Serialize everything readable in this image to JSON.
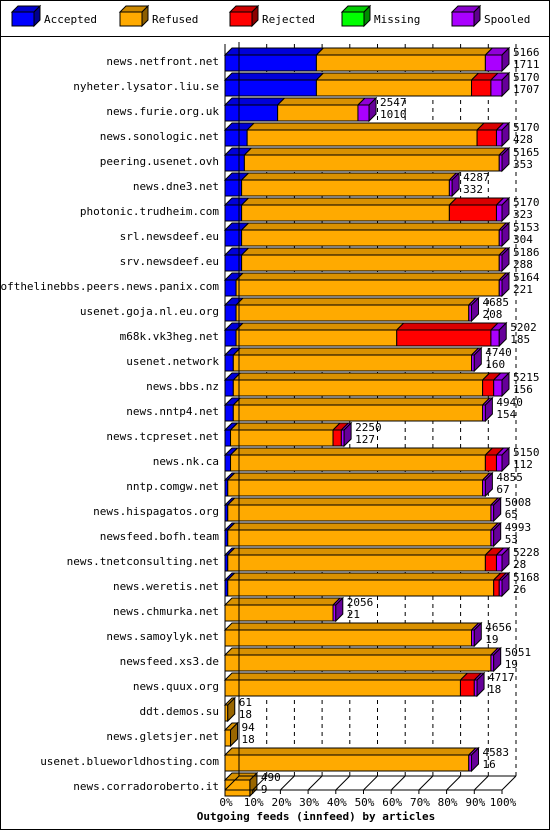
{
  "chart_data": {
    "type": "bar",
    "orientation": "horizontal",
    "stacked": true,
    "percent_scale": true,
    "title": "Outgoing feeds (innfeed) by articles",
    "legend": {
      "placement": "top",
      "entries": [
        {
          "label": "Accepted",
          "color": "#0000ff"
        },
        {
          "label": "Refused",
          "color": "#ffaa00"
        },
        {
          "label": "Rejected",
          "color": "#ff0000"
        },
        {
          "label": "Missing",
          "color": "#00ff00"
        },
        {
          "label": "Spooled",
          "color": "#aa00ff"
        }
      ]
    },
    "x_ticks": [
      "0%",
      "10%",
      "20%",
      "30%",
      "40%",
      "50%",
      "60%",
      "70%",
      "80%",
      "90%",
      "100%"
    ],
    "xlim": [
      0,
      100
    ],
    "grid": true,
    "rows": [
      {
        "label": "news.netfront.net",
        "total": "5166",
        "accepted_count": "1711",
        "pct": [
          33,
          61,
          0,
          0,
          6
        ]
      },
      {
        "label": "nyheter.lysator.liu.se",
        "total": "5170",
        "accepted_count": "1707",
        "pct": [
          33,
          56,
          7,
          0,
          4
        ]
      },
      {
        "label": "news.furie.org.uk",
        "total": "2547",
        "accepted_count": "1010",
        "pct": [
          19,
          29,
          0,
          0,
          4
        ]
      },
      {
        "label": "news.sonologic.net",
        "total": "5170",
        "accepted_count": "428",
        "pct": [
          8,
          83,
          7,
          0,
          2
        ]
      },
      {
        "label": "peering.usenet.ovh",
        "total": "5165",
        "accepted_count": "353",
        "pct": [
          7,
          92,
          0,
          0,
          1
        ]
      },
      {
        "label": "news.dne3.net",
        "total": "4287",
        "accepted_count": "332",
        "pct": [
          6,
          75,
          0,
          0,
          1
        ]
      },
      {
        "label": "photonic.trudheim.com",
        "total": "5170",
        "accepted_count": "323",
        "pct": [
          6,
          75,
          17,
          0,
          2
        ]
      },
      {
        "label": "srl.newsdeef.eu",
        "total": "5153",
        "accepted_count": "304",
        "pct": [
          6,
          93,
          0,
          0,
          1
        ]
      },
      {
        "label": "srv.newsdeef.eu",
        "total": "5186",
        "accepted_count": "288",
        "pct": [
          6,
          93,
          0,
          0,
          1
        ]
      },
      {
        "label": "endofthelinebbs.peers.news.panix.com",
        "total": "5164",
        "accepted_count": "221",
        "pct": [
          4,
          95,
          0,
          0,
          1
        ]
      },
      {
        "label": "usenet.goja.nl.eu.org",
        "total": "4685",
        "accepted_count": "208",
        "pct": [
          4,
          84,
          0,
          0,
          1
        ]
      },
      {
        "label": "m68k.vk3heg.net",
        "total": "5202",
        "accepted_count": "185",
        "pct": [
          4,
          58,
          34,
          0,
          3
        ]
      },
      {
        "label": "usenet.network",
        "total": "4740",
        "accepted_count": "160",
        "pct": [
          3,
          86,
          0,
          0,
          1
        ]
      },
      {
        "label": "news.bbs.nz",
        "total": "5215",
        "accepted_count": "156",
        "pct": [
          3,
          90,
          4,
          0,
          3
        ]
      },
      {
        "label": "news.nntp4.net",
        "total": "4940",
        "accepted_count": "154",
        "pct": [
          3,
          90,
          0,
          0,
          1
        ]
      },
      {
        "label": "news.tcpreset.net",
        "total": "2250",
        "accepted_count": "127",
        "pct": [
          2,
          37,
          3,
          0,
          1
        ]
      },
      {
        "label": "news.nk.ca",
        "total": "5150",
        "accepted_count": "112",
        "pct": [
          2,
          92,
          4,
          0,
          2
        ]
      },
      {
        "label": "nntp.comgw.net",
        "total": "4855",
        "accepted_count": "67",
        "pct": [
          1,
          92,
          0,
          0,
          1
        ]
      },
      {
        "label": "news.hispagatos.org",
        "total": "5008",
        "accepted_count": "65",
        "pct": [
          1,
          95,
          0,
          0,
          1
        ]
      },
      {
        "label": "newsfeed.bofh.team",
        "total": "4993",
        "accepted_count": "53",
        "pct": [
          1,
          95,
          0,
          0,
          1
        ]
      },
      {
        "label": "news.tnetconsulting.net",
        "total": "5228",
        "accepted_count": "28",
        "pct": [
          1,
          93,
          4,
          0,
          2
        ]
      },
      {
        "label": "news.weretis.net",
        "total": "5168",
        "accepted_count": "26",
        "pct": [
          1,
          96,
          2,
          0,
          1
        ]
      },
      {
        "label": "news.chmurka.net",
        "total": "2056",
        "accepted_count": "21",
        "pct": [
          0,
          39,
          0,
          0,
          1
        ]
      },
      {
        "label": "news.samoylyk.net",
        "total": "4656",
        "accepted_count": "19",
        "pct": [
          0,
          89,
          0,
          0,
          1
        ]
      },
      {
        "label": "newsfeed.xs3.de",
        "total": "5051",
        "accepted_count": "19",
        "pct": [
          0,
          96,
          0,
          0,
          1
        ]
      },
      {
        "label": "news.quux.org",
        "total": "4717",
        "accepted_count": "18",
        "pct": [
          0,
          85,
          5,
          0,
          1
        ]
      },
      {
        "label": "ddt.demos.su",
        "total": "61",
        "accepted_count": "18",
        "pct": [
          0,
          1,
          0,
          0,
          0
        ]
      },
      {
        "label": "news.gletsjer.net",
        "total": "94",
        "accepted_count": "18",
        "pct": [
          0,
          2,
          0,
          0,
          0
        ]
      },
      {
        "label": "usenet.blueworldhosting.com",
        "total": "4583",
        "accepted_count": "16",
        "pct": [
          0,
          88,
          0,
          0,
          1
        ]
      },
      {
        "label": "news.corradoroberto.it",
        "total": "490",
        "accepted_count": "9",
        "pct": [
          0,
          9,
          0,
          0,
          0
        ]
      }
    ]
  }
}
